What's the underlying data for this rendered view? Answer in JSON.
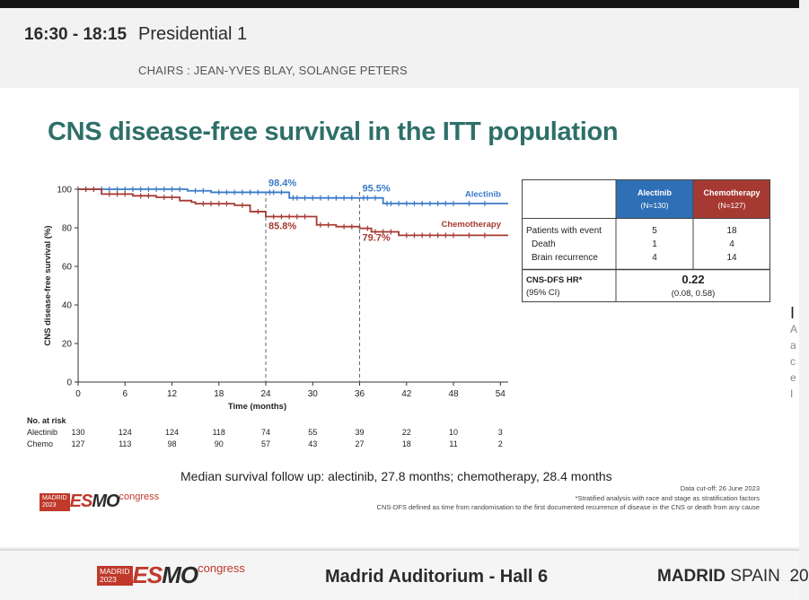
{
  "session": {
    "time": "16:30 - 18:15",
    "name": "Presidential 1",
    "chairs": "CHAIRS : JEAN-YVES BLAY, SOLANGE PETERS"
  },
  "slide": {
    "title": "CNS disease-free survival in the ITT population",
    "median_note": "Median survival follow up: alectinib, 27.8 months; chemotherapy, 28.4 months",
    "footnotes": [
      "Data cut-off: 26 June 2023",
      "*Stratified analysis with race and stage as stratification factors",
      "CNS-DFS defined as time from randomisation to the first documented recurrence of disease in the CNS or death from any cause"
    ],
    "right_edge_letters": [
      "I",
      "A",
      "a",
      "c",
      "e",
      "I"
    ]
  },
  "table": {
    "col_headers": [
      {
        "name": "Alectinib",
        "n": "(N=130)",
        "color": "#2f6fb5"
      },
      {
        "name": "Chemotherapy",
        "n": "(N=127)",
        "color": "#a63a32"
      }
    ],
    "rows": [
      {
        "label": "Patients with event",
        "alectinib": "5",
        "chemo": "18"
      },
      {
        "label": "Death",
        "alectinib": "1",
        "chemo": "4"
      },
      {
        "label": "Brain recurrence",
        "alectinib": "4",
        "chemo": "14"
      }
    ],
    "hr_label": "CNS-DFS HR*",
    "ci_label": "(95% CI)",
    "hr_value": "0.22",
    "ci_value": "(0.08, 0.58)"
  },
  "chart_data": {
    "type": "line",
    "title": "",
    "xlabel": "Time (months)",
    "ylabel": "CNS disease-free survival (%)",
    "xlim": [
      0,
      55
    ],
    "ylim": [
      0,
      100
    ],
    "xticks": [
      0,
      6,
      12,
      18,
      24,
      30,
      36,
      42,
      48,
      54
    ],
    "yticks": [
      0,
      20,
      40,
      60,
      80,
      100
    ],
    "reference_lines_x": [
      24,
      36
    ],
    "series": [
      {
        "name": "Alectinib",
        "color": "#3a7bc8",
        "steps": [
          [
            0,
            100
          ],
          [
            14,
            99.2
          ],
          [
            17,
            98.4
          ],
          [
            24,
            98.4
          ],
          [
            27,
            95.5
          ],
          [
            36,
            95.5
          ],
          [
            39,
            92.6
          ],
          [
            55,
            92.6
          ]
        ],
        "censors": [
          1,
          2,
          3,
          4,
          5,
          6,
          7,
          8,
          9,
          10,
          11,
          12,
          13,
          15,
          16,
          18,
          19,
          20,
          21,
          22,
          23,
          24.5,
          25,
          26,
          27.5,
          28,
          29,
          30,
          31,
          32,
          33,
          34,
          35,
          36.5,
          37,
          38,
          39.5,
          40,
          41,
          42,
          43,
          44,
          45,
          46,
          47,
          48,
          50,
          52
        ]
      },
      {
        "name": "Chemotherapy",
        "color": "#a63a32",
        "steps": [
          [
            0,
            100
          ],
          [
            3,
            97.5
          ],
          [
            7,
            96.6
          ],
          [
            10,
            95.8
          ],
          [
            13,
            94.1
          ],
          [
            14.5,
            93.3
          ],
          [
            15,
            92.5
          ],
          [
            20,
            91.7
          ],
          [
            22,
            88.4
          ],
          [
            24,
            85.8
          ],
          [
            30,
            85.8
          ],
          [
            30.5,
            81.5
          ],
          [
            33,
            80.6
          ],
          [
            36,
            79.7
          ],
          [
            37.5,
            77.9
          ],
          [
            41,
            76.1
          ],
          [
            55,
            76.1
          ]
        ],
        "censors": [
          1,
          2,
          4,
          5,
          6,
          8,
          9,
          11,
          12,
          16,
          17,
          18,
          19,
          21,
          23,
          25,
          26,
          27,
          28,
          29,
          31,
          32,
          34,
          35,
          37,
          38,
          39,
          40,
          42,
          43,
          44,
          45,
          46,
          47,
          48,
          50,
          52
        ]
      }
    ],
    "annotations": [
      {
        "x": 24,
        "y": 98.4,
        "text": "98.4%",
        "series": "Alectinib"
      },
      {
        "x": 36,
        "y": 95.5,
        "text": "95.5%",
        "series": "Alectinib"
      },
      {
        "x": 24,
        "y": 85.8,
        "text": "85.8%",
        "series": "Chemotherapy"
      },
      {
        "x": 36,
        "y": 79.7,
        "text": "79.7%",
        "series": "Chemotherapy"
      }
    ],
    "legend": [
      {
        "text": "Alectinib",
        "color": "#3a7bc8"
      },
      {
        "text": "Chemotherapy",
        "color": "#a63a32"
      }
    ],
    "at_risk": {
      "title": "No. at risk",
      "rows": [
        {
          "label": "Alectinib",
          "values": [
            "130",
            "124",
            "124",
            "118",
            "74",
            "55",
            "39",
            "22",
            "10",
            "3"
          ]
        },
        {
          "label": "Chemo",
          "values": [
            "127",
            "113",
            "98",
            "90",
            "57",
            "43",
            "27",
            "18",
            "11",
            "2"
          ]
        }
      ]
    }
  },
  "logos": {
    "madrid_line1": "MADRID",
    "madrid_line2": "2023",
    "es": "ES",
    "mo": "MO",
    "congress": "congress"
  },
  "footer": {
    "venue": "Madrid Auditorium - Hall 6",
    "city_bold": "MADRID",
    "city_rest": " SPAIN  20"
  }
}
